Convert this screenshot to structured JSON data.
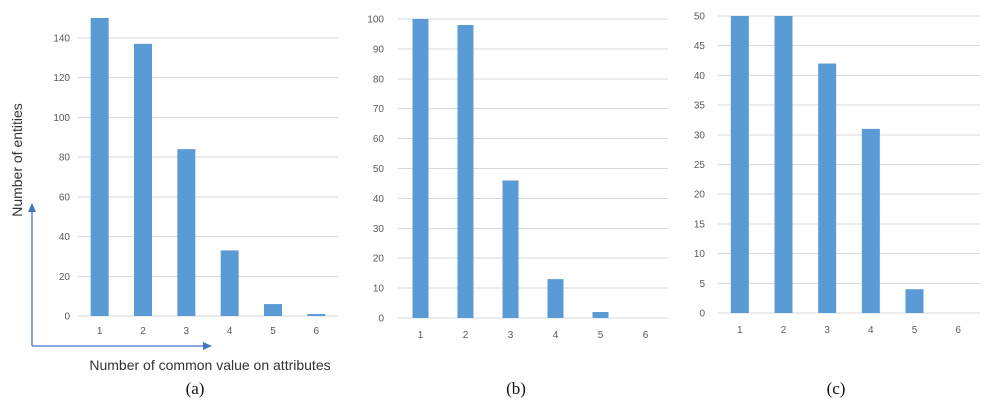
{
  "chart_data": [
    {
      "type": "bar",
      "caption": "(a)",
      "xlabel": "Number of common value on attributes",
      "ylabel": "Number of entities",
      "categories": [
        "1",
        "2",
        "3",
        "4",
        "5",
        "6"
      ],
      "values": [
        150,
        137,
        84,
        33,
        6,
        1
      ],
      "ylim": [
        0,
        150
      ],
      "yticks": [
        0,
        20,
        40,
        60,
        80,
        100,
        120,
        140
      ],
      "grid": true
    },
    {
      "type": "bar",
      "caption": "(b)",
      "xlabel": "",
      "ylabel": "",
      "categories": [
        "1",
        "2",
        "3",
        "4",
        "5",
        "6"
      ],
      "values": [
        100,
        98,
        46,
        13,
        2,
        0
      ],
      "ylim": [
        0,
        100
      ],
      "yticks": [
        0,
        10,
        20,
        30,
        40,
        50,
        60,
        70,
        80,
        90,
        100
      ],
      "grid": true
    },
    {
      "type": "bar",
      "caption": "(c)",
      "xlabel": "",
      "ylabel": "",
      "categories": [
        "1",
        "2",
        "3",
        "4",
        "5",
        "6"
      ],
      "values": [
        50,
        50,
        42,
        31,
        4,
        0
      ],
      "ylim": [
        0,
        50
      ],
      "yticks": [
        0,
        5,
        10,
        15,
        20,
        25,
        30,
        35,
        40,
        45,
        50
      ],
      "grid": true
    }
  ],
  "colors": {
    "bar": "#5b9bd5",
    "grid": "#d9d9d9",
    "arrow": "#4472c4"
  }
}
